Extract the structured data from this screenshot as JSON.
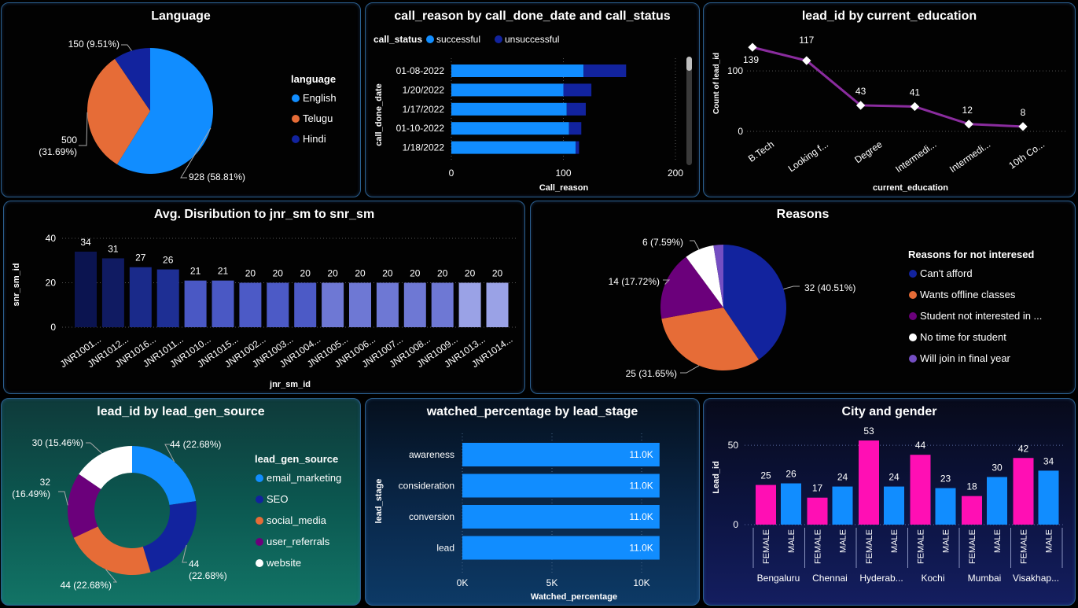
{
  "cards": {
    "language": {
      "title": "Language"
    },
    "call_reason": {
      "title": "call_reason by call_done_date and call_status"
    },
    "education": {
      "title": "lead_id by current_education"
    },
    "distribution": {
      "title": "Avg. Disribution to jnr_sm to snr_sm"
    },
    "reasons": {
      "title": "Reasons"
    },
    "lead_gen": {
      "title": "lead_id by lead_gen_source"
    },
    "watched": {
      "title": "watched_percentage by lead_stage"
    },
    "city_gender": {
      "title": "City and gender"
    }
  },
  "chart_data": [
    {
      "id": "language",
      "type": "pie",
      "title": "Language",
      "legend_title": "language",
      "legend_placement": "right",
      "slices": [
        {
          "name": "English",
          "value": 928,
          "label": "928 (58.81%)",
          "color": "#118dff"
        },
        {
          "name": "Telugu",
          "value": 500,
          "label": "500 (31.69%)",
          "color": "#e66c37"
        },
        {
          "name": "Hindi",
          "value": 150,
          "label": "150 (9.51%)",
          "color": "#12239e"
        }
      ]
    },
    {
      "id": "call_reason",
      "type": "bar",
      "orientation": "horizontal",
      "stacked": true,
      "title": "call_reason by call_done_date and call_status",
      "legend_title": "call_status",
      "legend_placement": "top-left",
      "xlabel": "Call_reason",
      "ylabel": "call_done_date",
      "xlim": [
        0,
        200
      ],
      "xticks": [
        "0",
        "100",
        "200"
      ],
      "categories": [
        "01-08-2022",
        "1/20/2022",
        "1/17/2022",
        "01-10-2022",
        "1/18/2022"
      ],
      "series": [
        {
          "name": "successful",
          "color": "#118dff",
          "values": [
            118,
            100,
            103,
            105,
            111
          ]
        },
        {
          "name": "unsuccessful",
          "color": "#12239e",
          "values": [
            38,
            25,
            17,
            11,
            3
          ]
        }
      ],
      "grid": true
    },
    {
      "id": "education",
      "type": "line",
      "title": "lead_id by current_education",
      "xlabel": "current_education",
      "ylabel": "Count of lead_id",
      "ylim": [
        0,
        160
      ],
      "yticks": [
        "0",
        "100"
      ],
      "categories": [
        "B.Tech",
        "Looking f...",
        "Degree",
        "Intermedi...",
        "Intermedi...",
        "10th Co..."
      ],
      "values": [
        139,
        117,
        43,
        41,
        12,
        8
      ],
      "data_labels": [
        "139",
        "117",
        "43",
        "41",
        "12",
        "8"
      ],
      "color": "#8a2c9e",
      "grid": true
    },
    {
      "id": "distribution",
      "type": "bar",
      "title": "Avg. Disribution to jnr_sm to snr_sm",
      "xlabel": "jnr_sm_id",
      "ylabel": "snr_sm_id",
      "ylim": [
        0,
        40
      ],
      "yticks": [
        "0",
        "20",
        "40"
      ],
      "categories": [
        "JNR1001...",
        "JNR1012...",
        "JNR1016...",
        "JNR1011...",
        "JNR1010...",
        "JNR1015...",
        "JNR1002...",
        "JNR1003...",
        "JNR1004...",
        "JNR1005...",
        "JNR1006...",
        "JNR1007...",
        "JNR1008...",
        "JNR1009...",
        "JNR1013...",
        "JNR1014..."
      ],
      "values": [
        34,
        31,
        27,
        26,
        21,
        21,
        20,
        20,
        20,
        20,
        20,
        20,
        20,
        20,
        20,
        20
      ],
      "data_labels": [
        "34",
        "31",
        "27",
        "26",
        "21",
        "21",
        "20",
        "20",
        "20",
        "20",
        "20",
        "20",
        "20",
        "20",
        "20",
        "20"
      ],
      "colors": [
        "#0b1450",
        "#101b62",
        "#1a2a8a",
        "#1e2f94",
        "#4a58c4",
        "#4a58c4",
        "#4c5ac6",
        "#4c5ac6",
        "#4c5ac6",
        "#6e78d4",
        "#6e78d4",
        "#6e78d4",
        "#6e78d4",
        "#6e78d4",
        "#9aa2e6",
        "#9aa2e6"
      ],
      "grid": true
    },
    {
      "id": "reasons",
      "type": "pie",
      "title": "Reasons",
      "legend_title": "Reasons for not interesed",
      "legend_placement": "right",
      "slices": [
        {
          "name": "Can't afford",
          "value": 32,
          "label": "32 (40.51%)",
          "color": "#12239e"
        },
        {
          "name": "Wants offline classes",
          "value": 25,
          "label": "25 (31.65%)",
          "color": "#e66c37"
        },
        {
          "name": "Student not interested in ...",
          "value": 14,
          "label": "14 (17.72%)",
          "color": "#6b007b"
        },
        {
          "name": "No time for student",
          "value": 6,
          "label": "6 (7.59%)",
          "color": "#ffffff"
        },
        {
          "name": "Will join in final year",
          "value": 2,
          "label": "",
          "color": "#744ec2"
        }
      ]
    },
    {
      "id": "lead_gen",
      "type": "pie",
      "donut": true,
      "title": "lead_id by lead_gen_source",
      "legend_title": "lead_gen_source",
      "legend_placement": "right",
      "slices": [
        {
          "name": "email_marketing",
          "value": 44,
          "label": "44 (22.68%)",
          "color": "#118dff"
        },
        {
          "name": "SEO",
          "value": 44,
          "label": "44 (22.68%)",
          "color": "#12239e"
        },
        {
          "name": "social_media",
          "value": 44,
          "label": "44 (22.68%)",
          "color": "#e66c37"
        },
        {
          "name": "user_referrals",
          "value": 32,
          "label": "32 (16.49%)",
          "color": "#6b007b"
        },
        {
          "name": "website",
          "value": 30,
          "label": "30 (15.46%)",
          "color": "#ffffff"
        }
      ]
    },
    {
      "id": "watched",
      "type": "bar",
      "orientation": "horizontal",
      "title": "watched_percentage by lead_stage",
      "xlabel": "Watched_percentage",
      "ylabel": "lead_stage",
      "xlim": [
        0,
        11000
      ],
      "xticks": [
        "0K",
        "5K",
        "10K"
      ],
      "categories": [
        "awareness",
        "consideration",
        "conversion",
        "lead"
      ],
      "values": [
        11000,
        11000,
        11000,
        11000
      ],
      "data_labels": [
        "11.0K",
        "11.0K",
        "11.0K",
        "11.0K"
      ],
      "color": "#118dff",
      "grid": true
    },
    {
      "id": "city_gender",
      "type": "bar",
      "title": "City and gender",
      "ylabel": "Lead_id",
      "ylim": [
        0,
        56
      ],
      "yticks": [
        "0",
        "50"
      ],
      "groups": [
        "Bengaluru",
        "Chennai",
        "Hyderab...",
        "Kochi",
        "Mumbai",
        "Visakhap..."
      ],
      "subcategories": [
        "FEMALE",
        "MALE"
      ],
      "series": [
        {
          "name": "FEMALE",
          "color": "#ff0fb4",
          "values": [
            25,
            17,
            53,
            44,
            18,
            42
          ]
        },
        {
          "name": "MALE",
          "color": "#118dff",
          "values": [
            26,
            24,
            24,
            23,
            30,
            34
          ]
        }
      ],
      "grid": true
    }
  ]
}
